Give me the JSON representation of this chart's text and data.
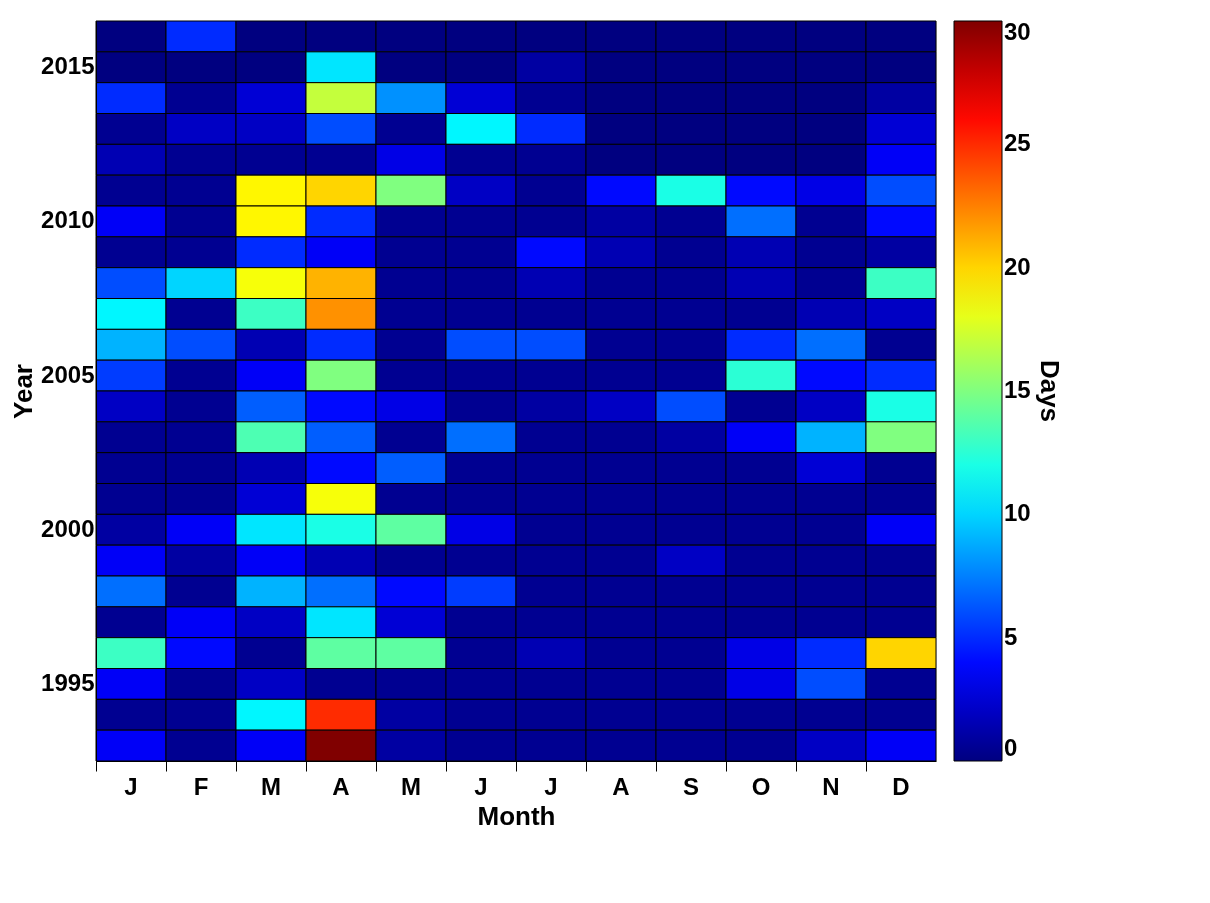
{
  "chart_data": {
    "type": "heatmap",
    "xlabel": "Month",
    "ylabel": "Year",
    "clabel": "Days",
    "categories": [
      "J",
      "F",
      "M",
      "A",
      "M",
      "J",
      "J",
      "A",
      "S",
      "O",
      "N",
      "D"
    ],
    "y_categories": [
      null,
      "2015",
      null,
      null,
      null,
      null,
      "2010",
      null,
      null,
      null,
      null,
      "2005",
      null,
      null,
      null,
      null,
      "2000",
      null,
      null,
      null,
      null,
      "1995",
      null,
      null
    ],
    "cells": [
      [
        0,
        5,
        0,
        0,
        0,
        0,
        0,
        0,
        0,
        0,
        0,
        0
      ],
      [
        0,
        0,
        0,
        10.5,
        0,
        0,
        1,
        0,
        0,
        0,
        0,
        0
      ],
      [
        5,
        0.5,
        2.5,
        17,
        8,
        2.5,
        0.5,
        0,
        0,
        0,
        0,
        1
      ],
      [
        0.5,
        2,
        2,
        6,
        0.5,
        11,
        5,
        0,
        0,
        0,
        0,
        2.5
      ],
      [
        1.5,
        0.5,
        0.5,
        0.5,
        3,
        0.5,
        0.5,
        0,
        0,
        0,
        0,
        3.5
      ],
      [
        0.5,
        0.5,
        19,
        20,
        15,
        2,
        0.5,
        4,
        12,
        4,
        3,
        6
      ],
      [
        3.5,
        0.5,
        19,
        5,
        0.5,
        0.5,
        0.5,
        1,
        0.5,
        7,
        0.5,
        4
      ],
      [
        0.5,
        0.5,
        5,
        3.5,
        0.5,
        0.5,
        4,
        1.5,
        0.5,
        1.5,
        0.5,
        1
      ],
      [
        6,
        10,
        18.5,
        21,
        0.5,
        0.5,
        1.5,
        0.5,
        0.5,
        1.5,
        0.5,
        13
      ],
      [
        11,
        0.5,
        13,
        22,
        0.5,
        0.5,
        0.5,
        0.5,
        0.5,
        0.5,
        1.5,
        2
      ],
      [
        9,
        6,
        1.5,
        5,
        0.5,
        6,
        6,
        0.5,
        0.5,
        5,
        7,
        0.5
      ],
      [
        5.5,
        0.5,
        3.5,
        15,
        0.5,
        0.5,
        0.5,
        0.5,
        0.5,
        12.5,
        4,
        5
      ],
      [
        2,
        0.5,
        6.5,
        4,
        3,
        0.5,
        1,
        2,
        6,
        0.5,
        2,
        12
      ],
      [
        0.5,
        0.5,
        13.5,
        6.5,
        0.5,
        7,
        0.5,
        0.5,
        1,
        3.5,
        9,
        15
      ],
      [
        0.5,
        0.5,
        1.5,
        4,
        6.5,
        0.5,
        0.5,
        0.5,
        0.5,
        0.5,
        2.5,
        0.5
      ],
      [
        0.5,
        0.5,
        2.5,
        18.5,
        0.5,
        0.5,
        0.5,
        0.5,
        0.5,
        0.5,
        0.5,
        0.5
      ],
      [
        1,
        3.5,
        10.5,
        12,
        14,
        3,
        0.5,
        0.5,
        0.5,
        0.5,
        0.5,
        3.5
      ],
      [
        3.5,
        1,
        3.5,
        1.5,
        0.5,
        0.5,
        0.5,
        0.5,
        2,
        0.5,
        0.5,
        0.5
      ],
      [
        7,
        0.5,
        9,
        7,
        4,
        5.5,
        0.5,
        0.5,
        0.5,
        0.5,
        0.5,
        0.5
      ],
      [
        0.5,
        3.5,
        2,
        10.5,
        2.5,
        0.5,
        0.5,
        0.5,
        0.5,
        0.5,
        0.5,
        0.5
      ],
      [
        13,
        4,
        0.5,
        14,
        14,
        0.5,
        1.5,
        0.5,
        0.5,
        3,
        5,
        20
      ],
      [
        3.5,
        0.5,
        2,
        0.5,
        0.5,
        0.5,
        0.5,
        0.5,
        0.5,
        3,
        6,
        0.5
      ],
      [
        0.5,
        0.5,
        11,
        25,
        1,
        0.5,
        0.5,
        0.5,
        0.5,
        0.5,
        0.5,
        0.5
      ],
      [
        3.5,
        0.5,
        3.5,
        30,
        1,
        0.5,
        0.5,
        0.5,
        0.5,
        0.5,
        2,
        3.5
      ]
    ],
    "clim": [
      0,
      30
    ],
    "cticks": [
      0,
      5,
      10,
      15,
      20,
      25,
      30
    ]
  }
}
